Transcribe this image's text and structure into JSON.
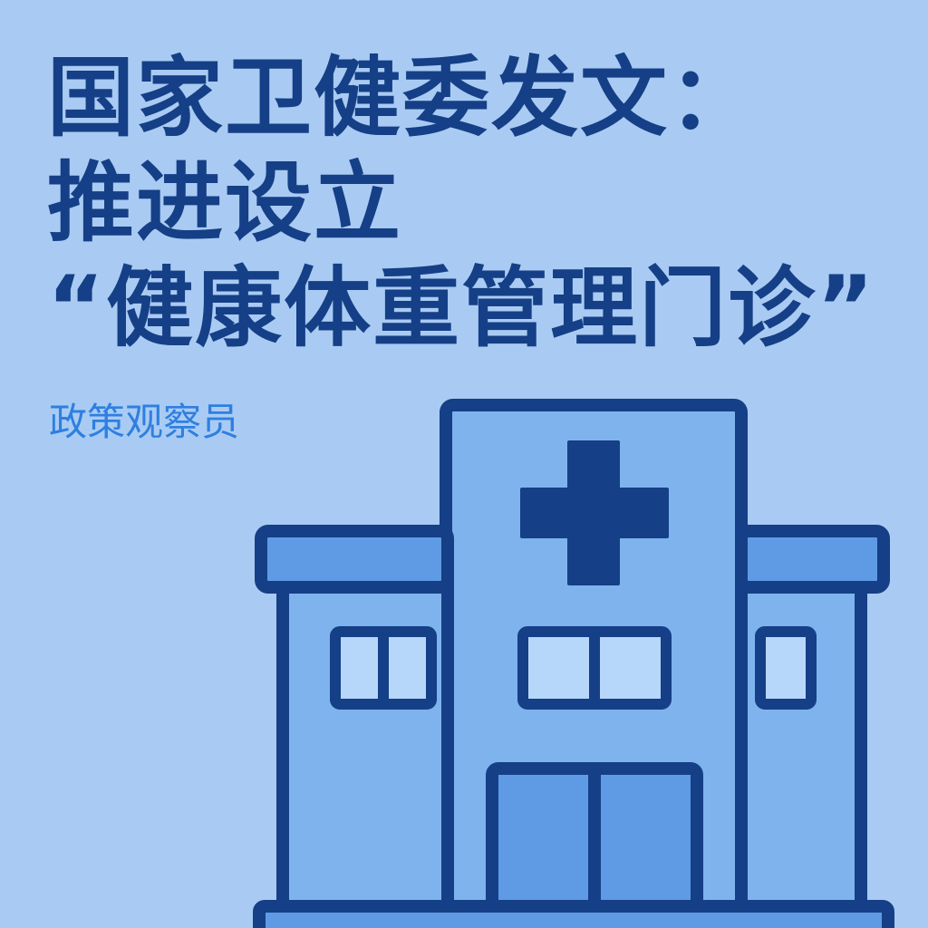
{
  "headline": {
    "line1": "国家卫健委发文：",
    "line2": "推进设立",
    "line3": "“健康体重管理门诊”"
  },
  "subtitle": "政策观察员",
  "illustration": {
    "icon": "hospital-building-icon",
    "colors": {
      "background": "#a9cbf3",
      "outline": "#153f86",
      "building_fill": "#7fb3ee",
      "roof_fill": "#5f9be5",
      "window_fill": "#b7d7fa",
      "door_fill": "#5f9be5"
    }
  }
}
